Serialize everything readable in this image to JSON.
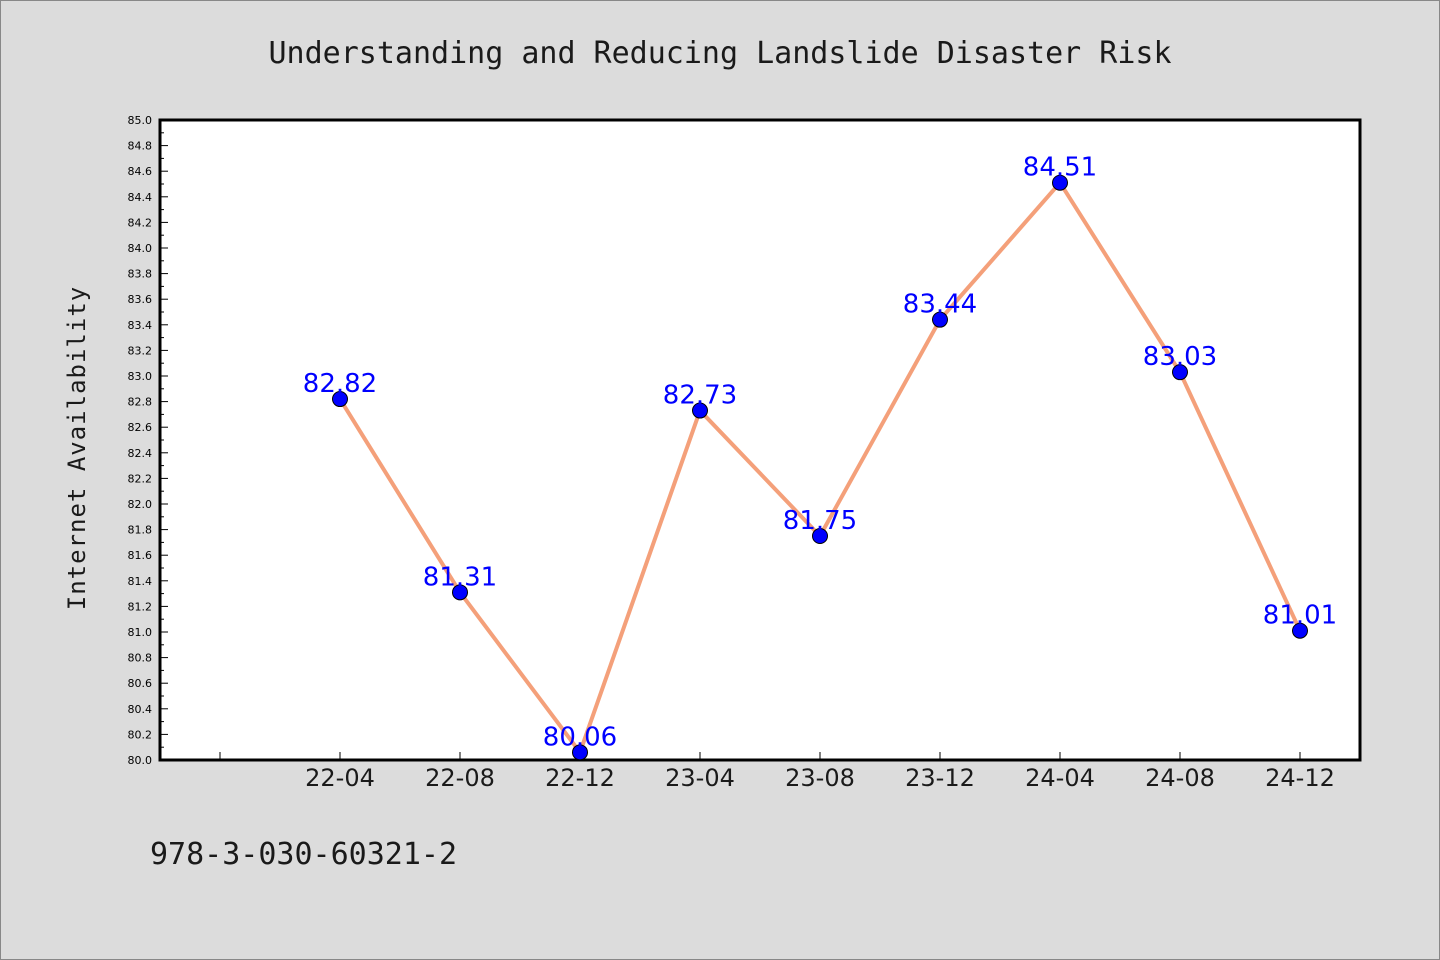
{
  "chart_data": {
    "type": "line",
    "title": "Understanding and Reducing Landslide Disaster Risk",
    "ylabel": "Internet Availability",
    "xlabel": "",
    "categories": [
      "22-04",
      "22-08",
      "22-12",
      "23-04",
      "23-08",
      "23-12",
      "24-04",
      "24-08",
      "24-12"
    ],
    "series": [
      {
        "values": [
          82.82,
          81.31,
          80.06,
          82.73,
          81.75,
          83.44,
          84.51,
          83.03,
          81.01
        ]
      }
    ],
    "data_labels": [
      "82.82",
      "81.31",
      "80.06",
      "82.73",
      "81.75",
      "83.44",
      "84.51",
      "83.03",
      "81.01"
    ],
    "ylim": [
      80.0,
      85.0
    ],
    "ytick_labels": [
      "80.0",
      "80.2",
      "80.4",
      "80.6",
      "80.8",
      "81.0",
      "81.2",
      "81.4",
      "81.6",
      "81.8",
      "82.0",
      "82.2",
      "82.4",
      "82.6",
      "82.8",
      "83.0",
      "83.2",
      "83.4",
      "83.6",
      "83.8",
      "84.0",
      "84.2",
      "84.4",
      "84.6",
      "84.8",
      "85.0"
    ],
    "grid": false,
    "line_color": "#f4a07a",
    "marker_color": "#0000ff",
    "label_color": "#0000ff"
  },
  "footer": {
    "text": "978-3-030-60321-2"
  }
}
